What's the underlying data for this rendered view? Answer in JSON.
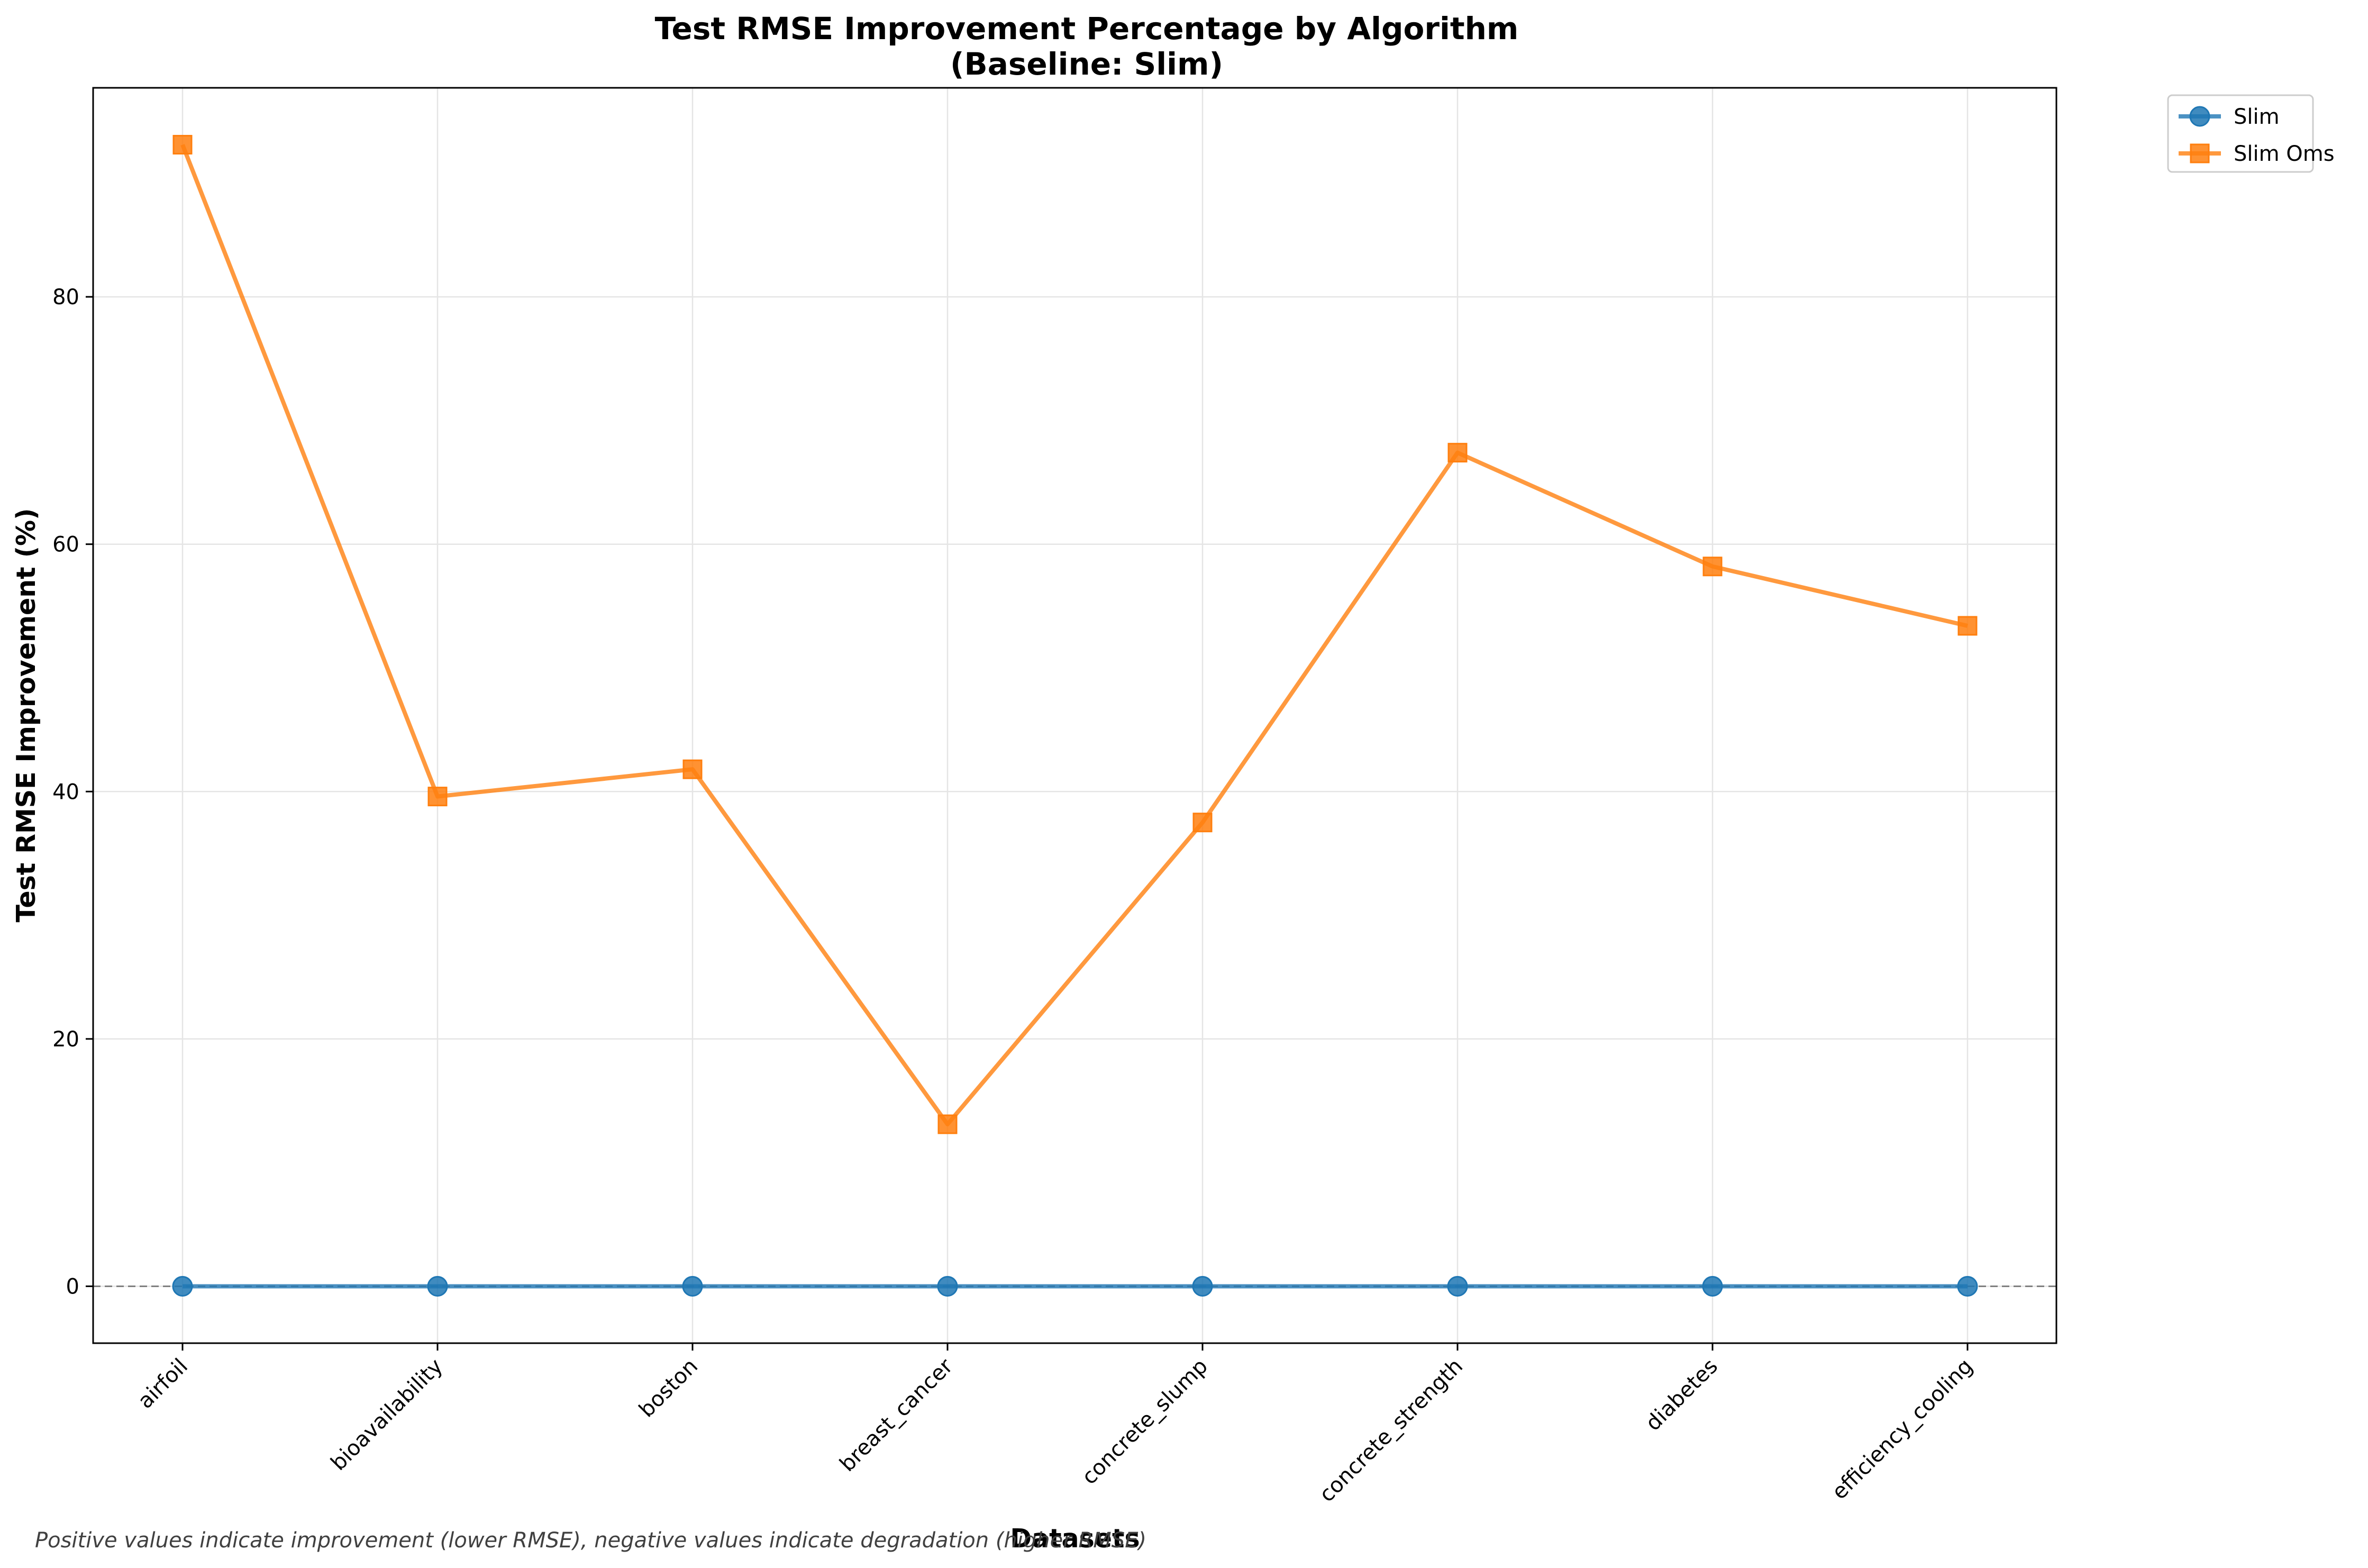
{
  "chart_data": {
    "type": "line",
    "title": "Test RMSE Improvement Percentage by Algorithm",
    "subtitle": "(Baseline: Slim)",
    "xlabel": "Datasets",
    "ylabel": "Test RMSE Improvement (%)",
    "categories": [
      "airfoil",
      "bioavailability",
      "boston",
      "breast_cancer",
      "concrete_slump",
      "concrete_strength",
      "diabetes",
      "efficiency_cooling"
    ],
    "series": [
      {
        "name": "Slim",
        "color": "#1f77b4",
        "marker": "circle",
        "values": [
          0,
          0,
          0,
          0,
          0,
          0,
          0,
          0
        ]
      },
      {
        "name": "Slim Oms",
        "color": "#ff7f0e",
        "marker": "square",
        "values": [
          92.3,
          39.6,
          41.8,
          13.1,
          37.5,
          67.4,
          58.2,
          53.4
        ]
      }
    ],
    "yticks": [
      0,
      20,
      40,
      60,
      80
    ],
    "ylim": [
      -4.6,
      96.9
    ],
    "grid": true,
    "reference_line": {
      "y": 0,
      "style": "dashed",
      "color": "#808080"
    },
    "legend_placement": "outside top-right",
    "note": "Positive values indicate improvement (lower RMSE), negative values indicate degradation (higher RMSE)"
  }
}
